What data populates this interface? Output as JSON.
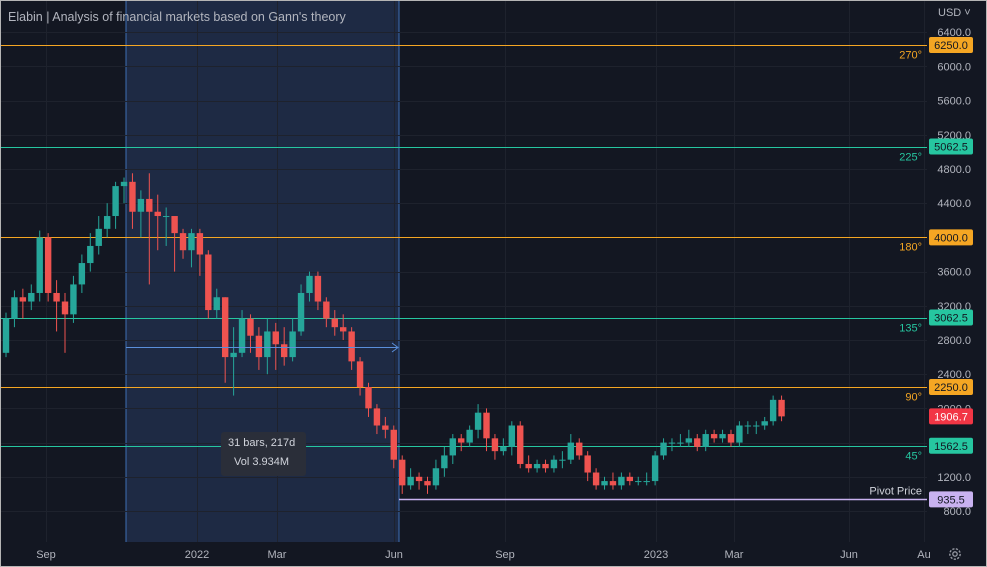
{
  "header": {
    "title": "Elabin | Analysis of financial markets based on Gann's theory",
    "currency": "USD ˅"
  },
  "chart_data": {
    "type": "candlestick",
    "title": "Elabin | Analysis of financial markets based on Gann's theory",
    "currency": "USD",
    "x_ticks": [
      "Sep",
      "2022",
      "Mar",
      "Jun",
      "Sep",
      "2023",
      "Mar",
      "Jun",
      "Au"
    ],
    "y_ticks": [
      "6400.0",
      "6000.0",
      "5600.0",
      "5200.0",
      "4800.0",
      "4400.0",
      "4000.0",
      "3600.0",
      "3200.0",
      "2800.0",
      "2400.0",
      "2000.0",
      "1600.0",
      "1200.0",
      "800.0"
    ],
    "ylim": [
      650,
      6650
    ],
    "gann_levels": [
      {
        "price": 6250.0,
        "price_label": "6250.0",
        "angle": "270°",
        "color": "#f5a623"
      },
      {
        "price": 5062.5,
        "price_label": "5062.5",
        "angle": "225°",
        "color": "#26c6a0"
      },
      {
        "price": 4000.0,
        "price_label": "4000.0",
        "angle": "180°",
        "color": "#f5a623"
      },
      {
        "price": 3062.5,
        "price_label": "3062.5",
        "angle": "135°",
        "color": "#26c6a0"
      },
      {
        "price": 2250.0,
        "price_label": "2250.0",
        "angle": "90°",
        "color": "#f5a623"
      },
      {
        "price": 1562.5,
        "price_label": "1562.5",
        "angle": "45°",
        "color": "#26c6a0"
      }
    ],
    "pivot": {
      "label": "Pivot Price",
      "price": 935.5,
      "price_label": "935.5",
      "color": "#c9b2f0"
    },
    "last_price": {
      "price": 1906.7,
      "price_label": "1906.7",
      "color": "#f23645"
    },
    "measure": {
      "bars_text": "31 bars, 217d",
      "vol_text": "Vol 3.934M"
    },
    "up_color": "#26a69a",
    "down_color": "#ef5350",
    "candles": [
      [
        2650,
        3050,
        3120,
        2600
      ],
      [
        3050,
        3300,
        3380,
        2950
      ],
      [
        3300,
        3250,
        3400,
        3050
      ],
      [
        3250,
        3350,
        3450,
        3150
      ],
      [
        3350,
        4000,
        4080,
        3250
      ],
      [
        4000,
        3350,
        4050,
        3250
      ],
      [
        3350,
        3250,
        3500,
        2900
      ],
      [
        3250,
        3100,
        3350,
        2650
      ],
      [
        3100,
        3450,
        3550,
        3000
      ],
      [
        3450,
        3700,
        3800,
        3350
      ],
      [
        3700,
        3900,
        4050,
        3600
      ],
      [
        3900,
        4100,
        4250,
        3800
      ],
      [
        4100,
        4250,
        4400,
        4000
      ],
      [
        4250,
        4600,
        4650,
        4100
      ],
      [
        4600,
        4650,
        4700,
        4400
      ],
      [
        4650,
        4300,
        4750,
        4100
      ],
      [
        4300,
        4450,
        4550,
        4000
      ],
      [
        4450,
        4300,
        4750,
        3450
      ],
      [
        4300,
        4250,
        4500,
        3850
      ],
      [
        4250,
        4250,
        4350,
        3900
      ],
      [
        4250,
        4050,
        4200,
        3600
      ],
      [
        4050,
        3850,
        4100,
        3750
      ],
      [
        3850,
        4050,
        4100,
        3650
      ],
      [
        4050,
        3800,
        4100,
        3550
      ],
      [
        3800,
        3150,
        3850,
        3050
      ],
      [
        3150,
        3300,
        3400,
        3050
      ],
      [
        3300,
        2600,
        3300,
        2300
      ],
      [
        2600,
        2650,
        2950,
        2150
      ],
      [
        2650,
        3050,
        3150,
        2600
      ],
      [
        3050,
        2850,
        3100,
        2650
      ],
      [
        2850,
        2600,
        2950,
        2450
      ],
      [
        2600,
        2900,
        3050,
        2400
      ],
      [
        2900,
        2750,
        3000,
        2450
      ],
      [
        2750,
        2600,
        2950,
        2500
      ],
      [
        2600,
        2900,
        3050,
        2550
      ],
      [
        2900,
        3350,
        3450,
        2850
      ],
      [
        3350,
        3550,
        3600,
        3250
      ],
      [
        3550,
        3250,
        3600,
        3150
      ],
      [
        3250,
        3050,
        3300,
        2950
      ],
      [
        3050,
        2950,
        3150,
        2850
      ],
      [
        2950,
        2900,
        3100,
        2800
      ],
      [
        2900,
        2550,
        2950,
        2450
      ],
      [
        2550,
        2250,
        2600,
        2150
      ],
      [
        2250,
        2000,
        2300,
        1900
      ],
      [
        2000,
        1800,
        2050,
        1700
      ],
      [
        1800,
        1750,
        1900,
        1650
      ],
      [
        1750,
        1400,
        1800,
        1300
      ],
      [
        1400,
        1100,
        1450,
        1000
      ],
      [
        1100,
        1200,
        1300,
        1050
      ],
      [
        1200,
        1150,
        1250,
        1050
      ],
      [
        1150,
        1100,
        1200,
        1000
      ],
      [
        1100,
        1300,
        1400,
        1050
      ],
      [
        1300,
        1450,
        1550,
        1200
      ],
      [
        1450,
        1650,
        1700,
        1350
      ],
      [
        1650,
        1600,
        1700,
        1500
      ],
      [
        1600,
        1750,
        1800,
        1550
      ],
      [
        1750,
        1950,
        2050,
        1650
      ],
      [
        1950,
        1650,
        2000,
        1500
      ],
      [
        1650,
        1500,
        1700,
        1400
      ],
      [
        1500,
        1550,
        1650,
        1450
      ],
      [
        1550,
        1800,
        1850,
        1450
      ],
      [
        1800,
        1350,
        1850,
        1300
      ],
      [
        1350,
        1300,
        1450,
        1250
      ],
      [
        1300,
        1350,
        1400,
        1250
      ],
      [
        1350,
        1300,
        1400,
        1250
      ],
      [
        1300,
        1400,
        1450,
        1250
      ],
      [
        1400,
        1400,
        1500,
        1300
      ],
      [
        1400,
        1600,
        1700,
        1350
      ],
      [
        1600,
        1450,
        1650,
        1400
      ],
      [
        1450,
        1250,
        1500,
        1150
      ],
      [
        1250,
        1100,
        1300,
        1050
      ],
      [
        1100,
        1150,
        1200,
        1050
      ],
      [
        1150,
        1100,
        1250,
        1050
      ],
      [
        1100,
        1200,
        1250,
        1050
      ],
      [
        1200,
        1150,
        1250,
        1100
      ],
      [
        1150,
        1150,
        1200,
        1100
      ],
      [
        1150,
        1150,
        1250,
        1100
      ],
      [
        1150,
        1450,
        1500,
        1100
      ],
      [
        1450,
        1600,
        1650,
        1400
      ],
      [
        1600,
        1600,
        1650,
        1500
      ],
      [
        1600,
        1600,
        1700,
        1550
      ],
      [
        1600,
        1650,
        1750,
        1550
      ],
      [
        1650,
        1550,
        1700,
        1500
      ],
      [
        1550,
        1700,
        1750,
        1500
      ],
      [
        1700,
        1650,
        1750,
        1600
      ],
      [
        1650,
        1700,
        1750,
        1600
      ],
      [
        1700,
        1600,
        1750,
        1550
      ],
      [
        1600,
        1800,
        1850,
        1550
      ],
      [
        1800,
        1800,
        1850,
        1700
      ],
      [
        1800,
        1800,
        1850,
        1700
      ],
      [
        1800,
        1850,
        1900,
        1750
      ],
      [
        1850,
        2100,
        2150,
        1800
      ],
      [
        2100,
        1906.7,
        2150,
        1850
      ]
    ]
  }
}
